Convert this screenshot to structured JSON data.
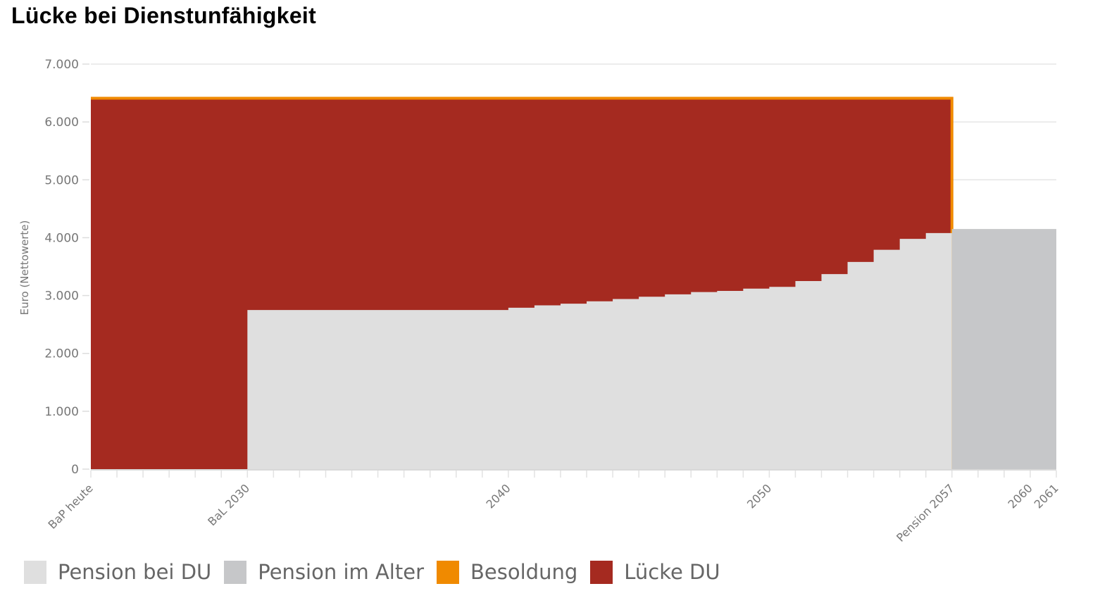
{
  "title": "Lücke bei Dienstunfähigkeit",
  "colors": {
    "pension_du": "#dfdfdf",
    "pension_alter": "#c6c7c9",
    "besoldung": "#f08a00",
    "luecke_du": "#a52a20",
    "grid": "#e6e6e6",
    "axis_text": "#777777"
  },
  "legend": [
    {
      "label": "Pension bei DU",
      "color": "#dfdfdf"
    },
    {
      "label": "Pension im Alter",
      "color": "#c6c7c9"
    },
    {
      "label": "Besoldung",
      "color": "#f08a00"
    },
    {
      "label": "Lücke DU",
      "color": "#a52a20"
    }
  ],
  "chart_data": {
    "type": "area",
    "title": "Lücke bei Dienstunfähigkeit",
    "xlabel": "",
    "ylabel": "Euro (Nettowerte)",
    "ylim": [
      0,
      7000
    ],
    "y_ticks": [
      "0",
      "1.000",
      "2.000",
      "3.000",
      "4.000",
      "5.000",
      "6.000",
      "7.000"
    ],
    "x_tick_labels": [
      "BaP heute",
      "BaL 2030",
      "2040",
      "2050",
      "Pension 2057",
      "2060",
      "2061"
    ],
    "x_tick_years": [
      2024,
      2030,
      2040,
      2050,
      2057,
      2060,
      2061
    ],
    "grid": true,
    "legend_position": "bottom",
    "step": true,
    "x": [
      2024,
      2025,
      2026,
      2027,
      2028,
      2029,
      2030,
      2031,
      2032,
      2033,
      2034,
      2035,
      2036,
      2037,
      2038,
      2039,
      2040,
      2041,
      2042,
      2043,
      2044,
      2045,
      2046,
      2047,
      2048,
      2049,
      2050,
      2051,
      2052,
      2053,
      2054,
      2055,
      2056,
      2057,
      2058,
      2059,
      2060,
      2061
    ],
    "series": [
      {
        "name": "Pension bei DU",
        "values": [
          0,
          0,
          0,
          0,
          0,
          0,
          2750,
          2750,
          2750,
          2750,
          2750,
          2750,
          2750,
          2750,
          2750,
          2750,
          2790,
          2830,
          2860,
          2900,
          2940,
          2980,
          3020,
          3060,
          3080,
          3120,
          3150,
          3250,
          3370,
          3580,
          3790,
          3980,
          4080,
          null,
          null,
          null,
          null,
          null
        ]
      },
      {
        "name": "Pension im Alter",
        "values": [
          null,
          null,
          null,
          null,
          null,
          null,
          null,
          null,
          null,
          null,
          null,
          null,
          null,
          null,
          null,
          null,
          null,
          null,
          null,
          null,
          null,
          null,
          null,
          null,
          null,
          null,
          null,
          null,
          null,
          null,
          null,
          null,
          null,
          4150,
          4150,
          4150,
          4150,
          4150
        ]
      },
      {
        "name": "Besoldung",
        "values": [
          6410,
          6410,
          6410,
          6410,
          6410,
          6410,
          6410,
          6410,
          6410,
          6410,
          6410,
          6410,
          6410,
          6410,
          6410,
          6410,
          6410,
          6410,
          6410,
          6410,
          6410,
          6410,
          6410,
          6410,
          6410,
          6410,
          6410,
          6410,
          6410,
          6410,
          6410,
          6410,
          6410,
          null,
          null,
          null,
          null,
          null
        ]
      },
      {
        "name": "Lücke DU",
        "values": [
          6410,
          6410,
          6410,
          6410,
          6410,
          6410,
          3660,
          3660,
          3660,
          3660,
          3660,
          3660,
          3660,
          3660,
          3660,
          3660,
          3620,
          3580,
          3550,
          3510,
          3470,
          3430,
          3390,
          3350,
          3330,
          3290,
          3260,
          3160,
          3040,
          2830,
          2620,
          2430,
          2330,
          null,
          null,
          null,
          null,
          null
        ]
      }
    ]
  }
}
